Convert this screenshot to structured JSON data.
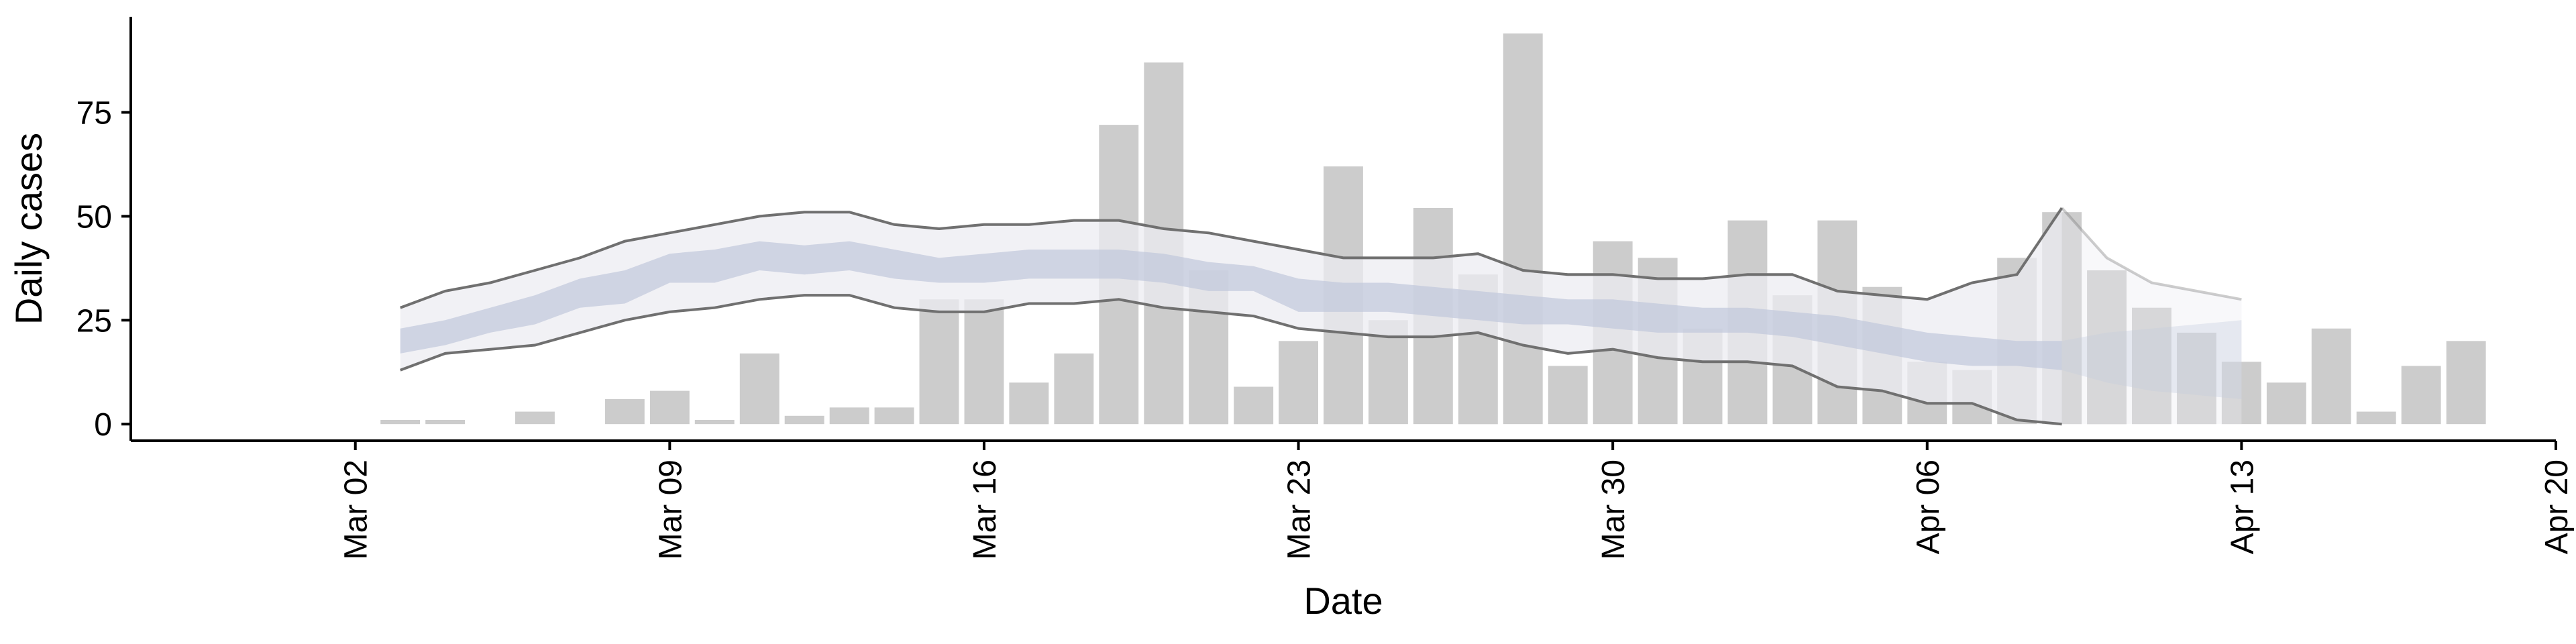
{
  "chart_data": {
    "type": "bar",
    "title": "",
    "xlabel": "Date",
    "ylabel": "Daily cases",
    "ylim": [
      -4,
      98
    ],
    "xlim": [
      "2020-02-26",
      "2020-04-20"
    ],
    "yticks": [
      0,
      25,
      50,
      75
    ],
    "xticks": [
      {
        "date": "2020-03-02",
        "label": "Mar 02"
      },
      {
        "date": "2020-03-09",
        "label": "Mar 09"
      },
      {
        "date": "2020-03-16",
        "label": "Mar 16"
      },
      {
        "date": "2020-03-23",
        "label": "Mar 23"
      },
      {
        "date": "2020-03-30",
        "label": "Mar 30"
      },
      {
        "date": "2020-04-06",
        "label": "Apr 06"
      },
      {
        "date": "2020-04-13",
        "label": "Apr 13"
      },
      {
        "date": "2020-04-20",
        "label": "Apr 20"
      }
    ],
    "grid": false,
    "bars": {
      "start_date": "2020-03-03",
      "values": [
        1,
        1,
        0,
        3,
        0,
        6,
        8,
        1,
        17,
        2,
        4,
        4,
        30,
        30,
        10,
        17,
        72,
        87,
        37,
        9,
        20,
        62,
        25,
        52,
        36,
        94,
        14,
        44,
        40,
        23,
        49,
        31,
        49,
        33,
        15,
        13,
        40,
        51,
        37,
        28,
        22,
        15,
        10,
        23,
        3,
        14,
        20
      ]
    },
    "estimate": {
      "start_date": "2020-03-03",
      "outer_upper": [
        28,
        32,
        34,
        37,
        40,
        44,
        46,
        48,
        50,
        51,
        51,
        48,
        47,
        48,
        48,
        49,
        49,
        47,
        46,
        44,
        42,
        40,
        40,
        40,
        41,
        37,
        36,
        36,
        35,
        35,
        36,
        36,
        32,
        31,
        30,
        34,
        36,
        52
      ],
      "inner_upper": [
        23,
        25,
        28,
        31,
        35,
        37,
        41,
        42,
        44,
        43,
        44,
        42,
        40,
        41,
        42,
        42,
        42,
        41,
        39,
        38,
        35,
        34,
        34,
        33,
        32,
        31,
        30,
        30,
        29,
        28,
        28,
        27,
        26,
        24,
        22,
        21,
        20,
        20
      ],
      "inner_lower": [
        17,
        19,
        22,
        24,
        28,
        29,
        34,
        34,
        37,
        36,
        37,
        35,
        34,
        34,
        35,
        35,
        35,
        34,
        32,
        32,
        27,
        27,
        27,
        26,
        25,
        24,
        24,
        23,
        22,
        22,
        22,
        21,
        19,
        17,
        15,
        14,
        14,
        13
      ],
      "outer_lower": [
        13,
        17,
        18,
        19,
        22,
        25,
        27,
        28,
        30,
        31,
        31,
        28,
        27,
        27,
        29,
        29,
        30,
        28,
        27,
        26,
        23,
        22,
        21,
        21,
        22,
        19,
        17,
        18,
        16,
        15,
        15,
        14,
        9,
        8,
        5,
        5,
        1,
        0
      ],
      "extension": {
        "start_date": "2020-04-09",
        "outer_upper": [
          52,
          40,
          34,
          32,
          30
        ],
        "inner_upper": [
          20,
          22,
          23,
          24,
          25
        ],
        "inner_lower": [
          13,
          10,
          8,
          7,
          6
        ],
        "outer_lower": [
          0,
          0,
          0,
          0,
          0
        ]
      }
    },
    "colors": {
      "bar": "#cccccc",
      "outer_band": "#ececf2",
      "inner_band": "#c3cadc",
      "interval_line": "#707070",
      "axis": "#000000"
    }
  }
}
